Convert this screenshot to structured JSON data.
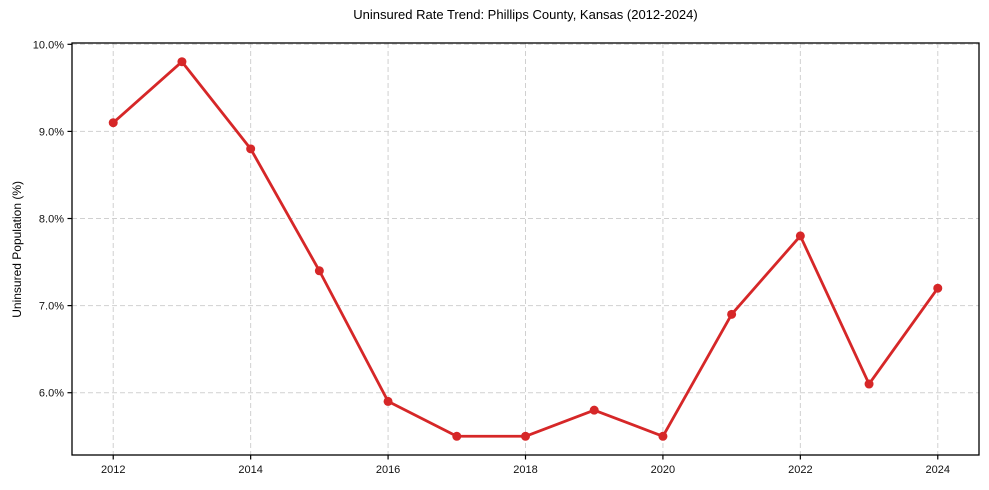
{
  "chart_data": {
    "type": "line",
    "title": "Uninsured Rate Trend: Phillips County, Kansas (2012-2024)",
    "xlabel": "",
    "ylabel": "Uninsured Population (%)",
    "x": [
      2012,
      2013,
      2014,
      2015,
      2016,
      2017,
      2018,
      2019,
      2020,
      2021,
      2022,
      2023,
      2024
    ],
    "values": [
      9.1,
      9.8,
      8.8,
      7.4,
      5.9,
      5.5,
      5.5,
      5.8,
      5.5,
      6.9,
      7.8,
      6.1,
      7.2
    ],
    "xlim": [
      2011.4,
      2024.6
    ],
    "ylim": [
      5.285,
      10.015
    ],
    "xticks": {
      "values": [
        2012,
        2014,
        2016,
        2018,
        2020,
        2022,
        2024
      ],
      "labels": [
        "2012",
        "2014",
        "2016",
        "2018",
        "2020",
        "2022",
        "2024"
      ]
    },
    "yticks": {
      "values": [
        6,
        7,
        8,
        9,
        10
      ],
      "labels": [
        "6.0%",
        "7.0%",
        "8.0%",
        "9.0%",
        "10.0%"
      ]
    },
    "grid": true,
    "grid_style": "dashed",
    "legend_position": "none",
    "marker": "circle"
  },
  "colors": {
    "line": "#d62728",
    "marker": "#d62728",
    "grid": "#cccccc",
    "spine": "#000000",
    "text": "#000000",
    "background": "#ffffff"
  }
}
